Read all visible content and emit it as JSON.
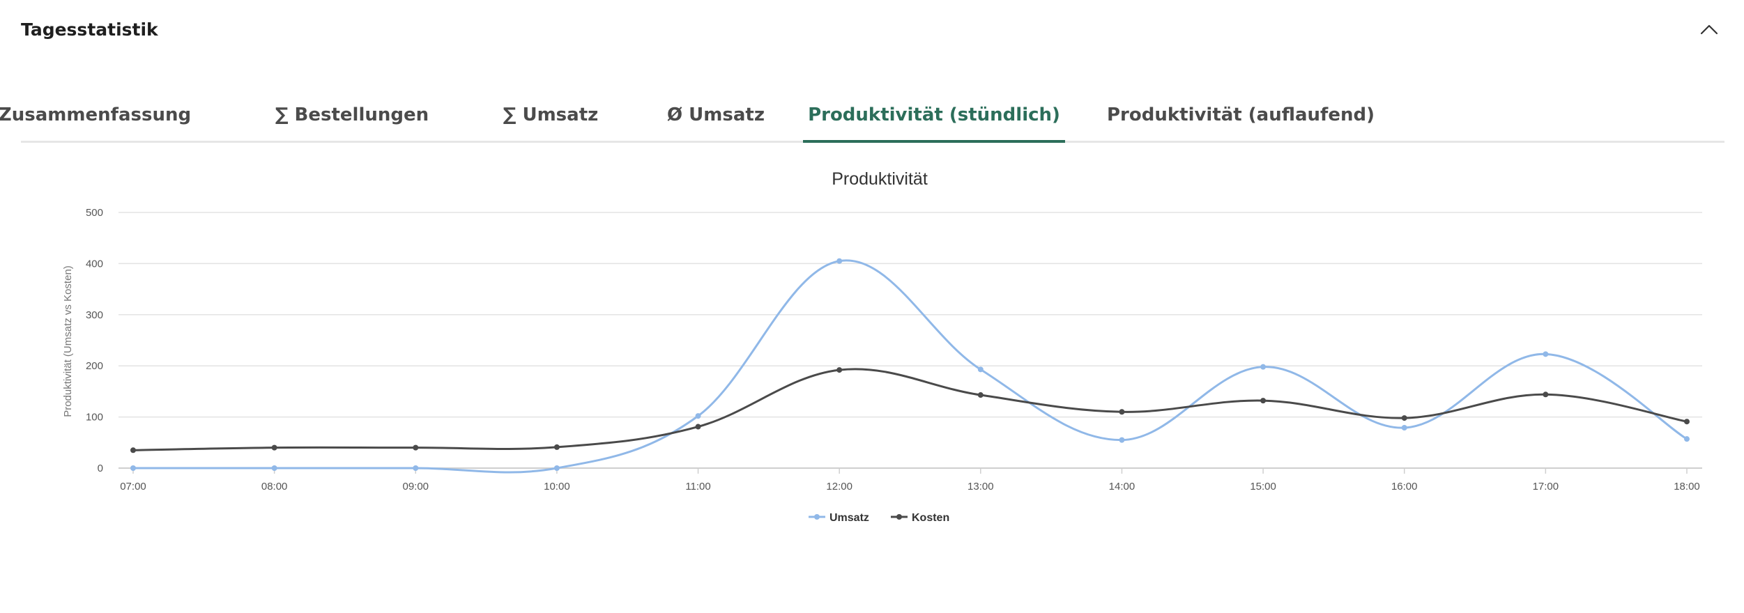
{
  "panel": {
    "title": "Tagesstatistik",
    "collapse_icon": "chevron-up-icon"
  },
  "tabs": [
    {
      "label": "Zusammenfassung",
      "active": false
    },
    {
      "label": "∑ Bestellungen",
      "active": false
    },
    {
      "label": "∑ Umsatz",
      "active": false
    },
    {
      "label": "Ø Umsatz",
      "active": false
    },
    {
      "label": "Produktivität (stündlich)",
      "active": true
    },
    {
      "label": "Produktivität (auflaufend)",
      "active": false
    }
  ],
  "colors": {
    "accent": "#2c6e5a",
    "umsatz": "#90b8e8",
    "kosten": "#4a4a4a",
    "grid": "#e3e3e3"
  },
  "chart_data": {
    "type": "line",
    "title": "Produktivität",
    "xlabel": "",
    "ylabel": "Produktivität (Umsatz vs Kosten)",
    "categories": [
      "07:00",
      "08:00",
      "09:00",
      "10:00",
      "11:00",
      "12:00",
      "13:00",
      "14:00",
      "15:00",
      "16:00",
      "17:00",
      "18:00"
    ],
    "ylim": [
      0,
      500
    ],
    "yticks": [
      0,
      100,
      200,
      300,
      400,
      500
    ],
    "grid": true,
    "legend_position": "bottom-center",
    "series": [
      {
        "name": "Umsatz",
        "color": "#90b8e8",
        "values": [
          0,
          0,
          0,
          0,
          102,
          405,
          193,
          55,
          198,
          79,
          223,
          57
        ]
      },
      {
        "name": "Kosten",
        "color": "#4a4a4a",
        "values": [
          35,
          40,
          40,
          41,
          81,
          192,
          143,
          110,
          132,
          98,
          144,
          91
        ]
      }
    ]
  }
}
